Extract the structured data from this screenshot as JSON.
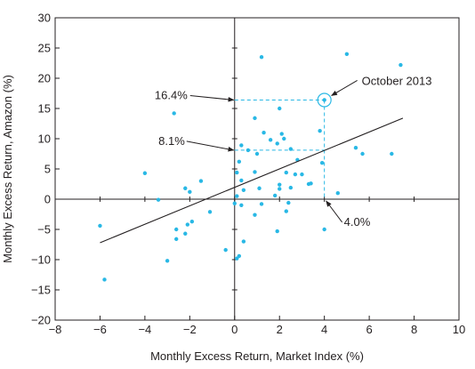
{
  "chart_data": {
    "type": "scatter",
    "title": "",
    "xlabel": "Monthly Excess Return, Market Index (%)",
    "ylabel": "Monthly Excess Return, Amazon (%)",
    "xlim": [
      -8,
      10
    ],
    "ylim": [
      -20,
      30
    ],
    "xticks": [
      -8,
      -6,
      -4,
      -2,
      0,
      2,
      4,
      6,
      8,
      10
    ],
    "yticks": [
      -20,
      -15,
      -10,
      -5,
      0,
      5,
      10,
      15,
      20,
      25,
      30
    ],
    "x_tick_labels": [
      "−8",
      "−6",
      "−4",
      "−2",
      "0",
      "2",
      "4",
      "6",
      "8",
      "10"
    ],
    "y_tick_labels": [
      "−20",
      "−15",
      "−10",
      "−5",
      "0",
      "5",
      "10",
      "15",
      "20",
      "25",
      "30"
    ],
    "grid": false,
    "point_color": "#29b8e5",
    "line_color": "#231f20",
    "guide_color": "#29b8e5",
    "points": [
      [
        1.2,
        23.5
      ],
      [
        5.0,
        24.0
      ],
      [
        7.4,
        22.2
      ],
      [
        2.0,
        15.0
      ],
      [
        -2.7,
        14.2
      ],
      [
        4.0,
        16.4
      ],
      [
        0.9,
        13.4
      ],
      [
        1.3,
        11.0
      ],
      [
        1.6,
        9.8
      ],
      [
        2.1,
        10.8
      ],
      [
        2.2,
        10.0
      ],
      [
        3.8,
        11.3
      ],
      [
        1.9,
        9.2
      ],
      [
        0.3,
        8.9
      ],
      [
        0.6,
        8.1
      ],
      [
        2.5,
        8.3
      ],
      [
        5.4,
        8.5
      ],
      [
        5.7,
        7.5
      ],
      [
        7.0,
        7.5
      ],
      [
        1.0,
        7.5
      ],
      [
        0.2,
        6.2
      ],
      [
        2.8,
        6.5
      ],
      [
        3.9,
        6.0
      ],
      [
        -4.0,
        4.3
      ],
      [
        0.1,
        4.4
      ],
      [
        0.9,
        4.5
      ],
      [
        2.3,
        4.4
      ],
      [
        2.7,
        4.1
      ],
      [
        3.0,
        4.1
      ],
      [
        -1.5,
        3.0
      ],
      [
        0.3,
        3.1
      ],
      [
        2.0,
        2.4
      ],
      [
        3.3,
        2.5
      ],
      [
        -2.2,
        1.8
      ],
      [
        -2.0,
        1.2
      ],
      [
        0.4,
        1.5
      ],
      [
        1.1,
        1.8
      ],
      [
        2.0,
        1.7
      ],
      [
        2.5,
        1.9
      ],
      [
        3.4,
        2.6
      ],
      [
        0.1,
        0.5
      ],
      [
        1.8,
        0.6
      ],
      [
        4.6,
        1.0
      ],
      [
        -3.4,
        -0.1
      ],
      [
        0.0,
        -0.7
      ],
      [
        0.3,
        -1.0
      ],
      [
        1.2,
        -0.8
      ],
      [
        2.4,
        -0.6
      ],
      [
        -1.1,
        -2.1
      ],
      [
        0.9,
        -2.6
      ],
      [
        2.3,
        -2.0
      ],
      [
        -1.9,
        -3.7
      ],
      [
        -2.1,
        -4.2
      ],
      [
        -6.0,
        -4.4
      ],
      [
        -2.6,
        -5.0
      ],
      [
        1.9,
        -5.3
      ],
      [
        4.0,
        -5.0
      ],
      [
        -2.2,
        -5.7
      ],
      [
        -2.6,
        -6.6
      ],
      [
        0.4,
        -7.0
      ],
      [
        -0.4,
        -8.4
      ],
      [
        0.2,
        -9.4
      ],
      [
        0.1,
        -9.8
      ],
      [
        -3.0,
        -10.2
      ],
      [
        -5.8,
        -13.3
      ]
    ],
    "regression_line": {
      "x": [
        -6.0,
        7.5
      ],
      "y": [
        -7.2,
        13.4
      ]
    },
    "annotations": [
      {
        "text": "October 2013",
        "point": [
          4.0,
          16.4
        ]
      },
      {
        "text": "16.4%",
        "y": 16.4
      },
      {
        "text": "8.1%",
        "y": 8.1
      },
      {
        "text": "4.0%",
        "x": 4.0
      }
    ]
  }
}
